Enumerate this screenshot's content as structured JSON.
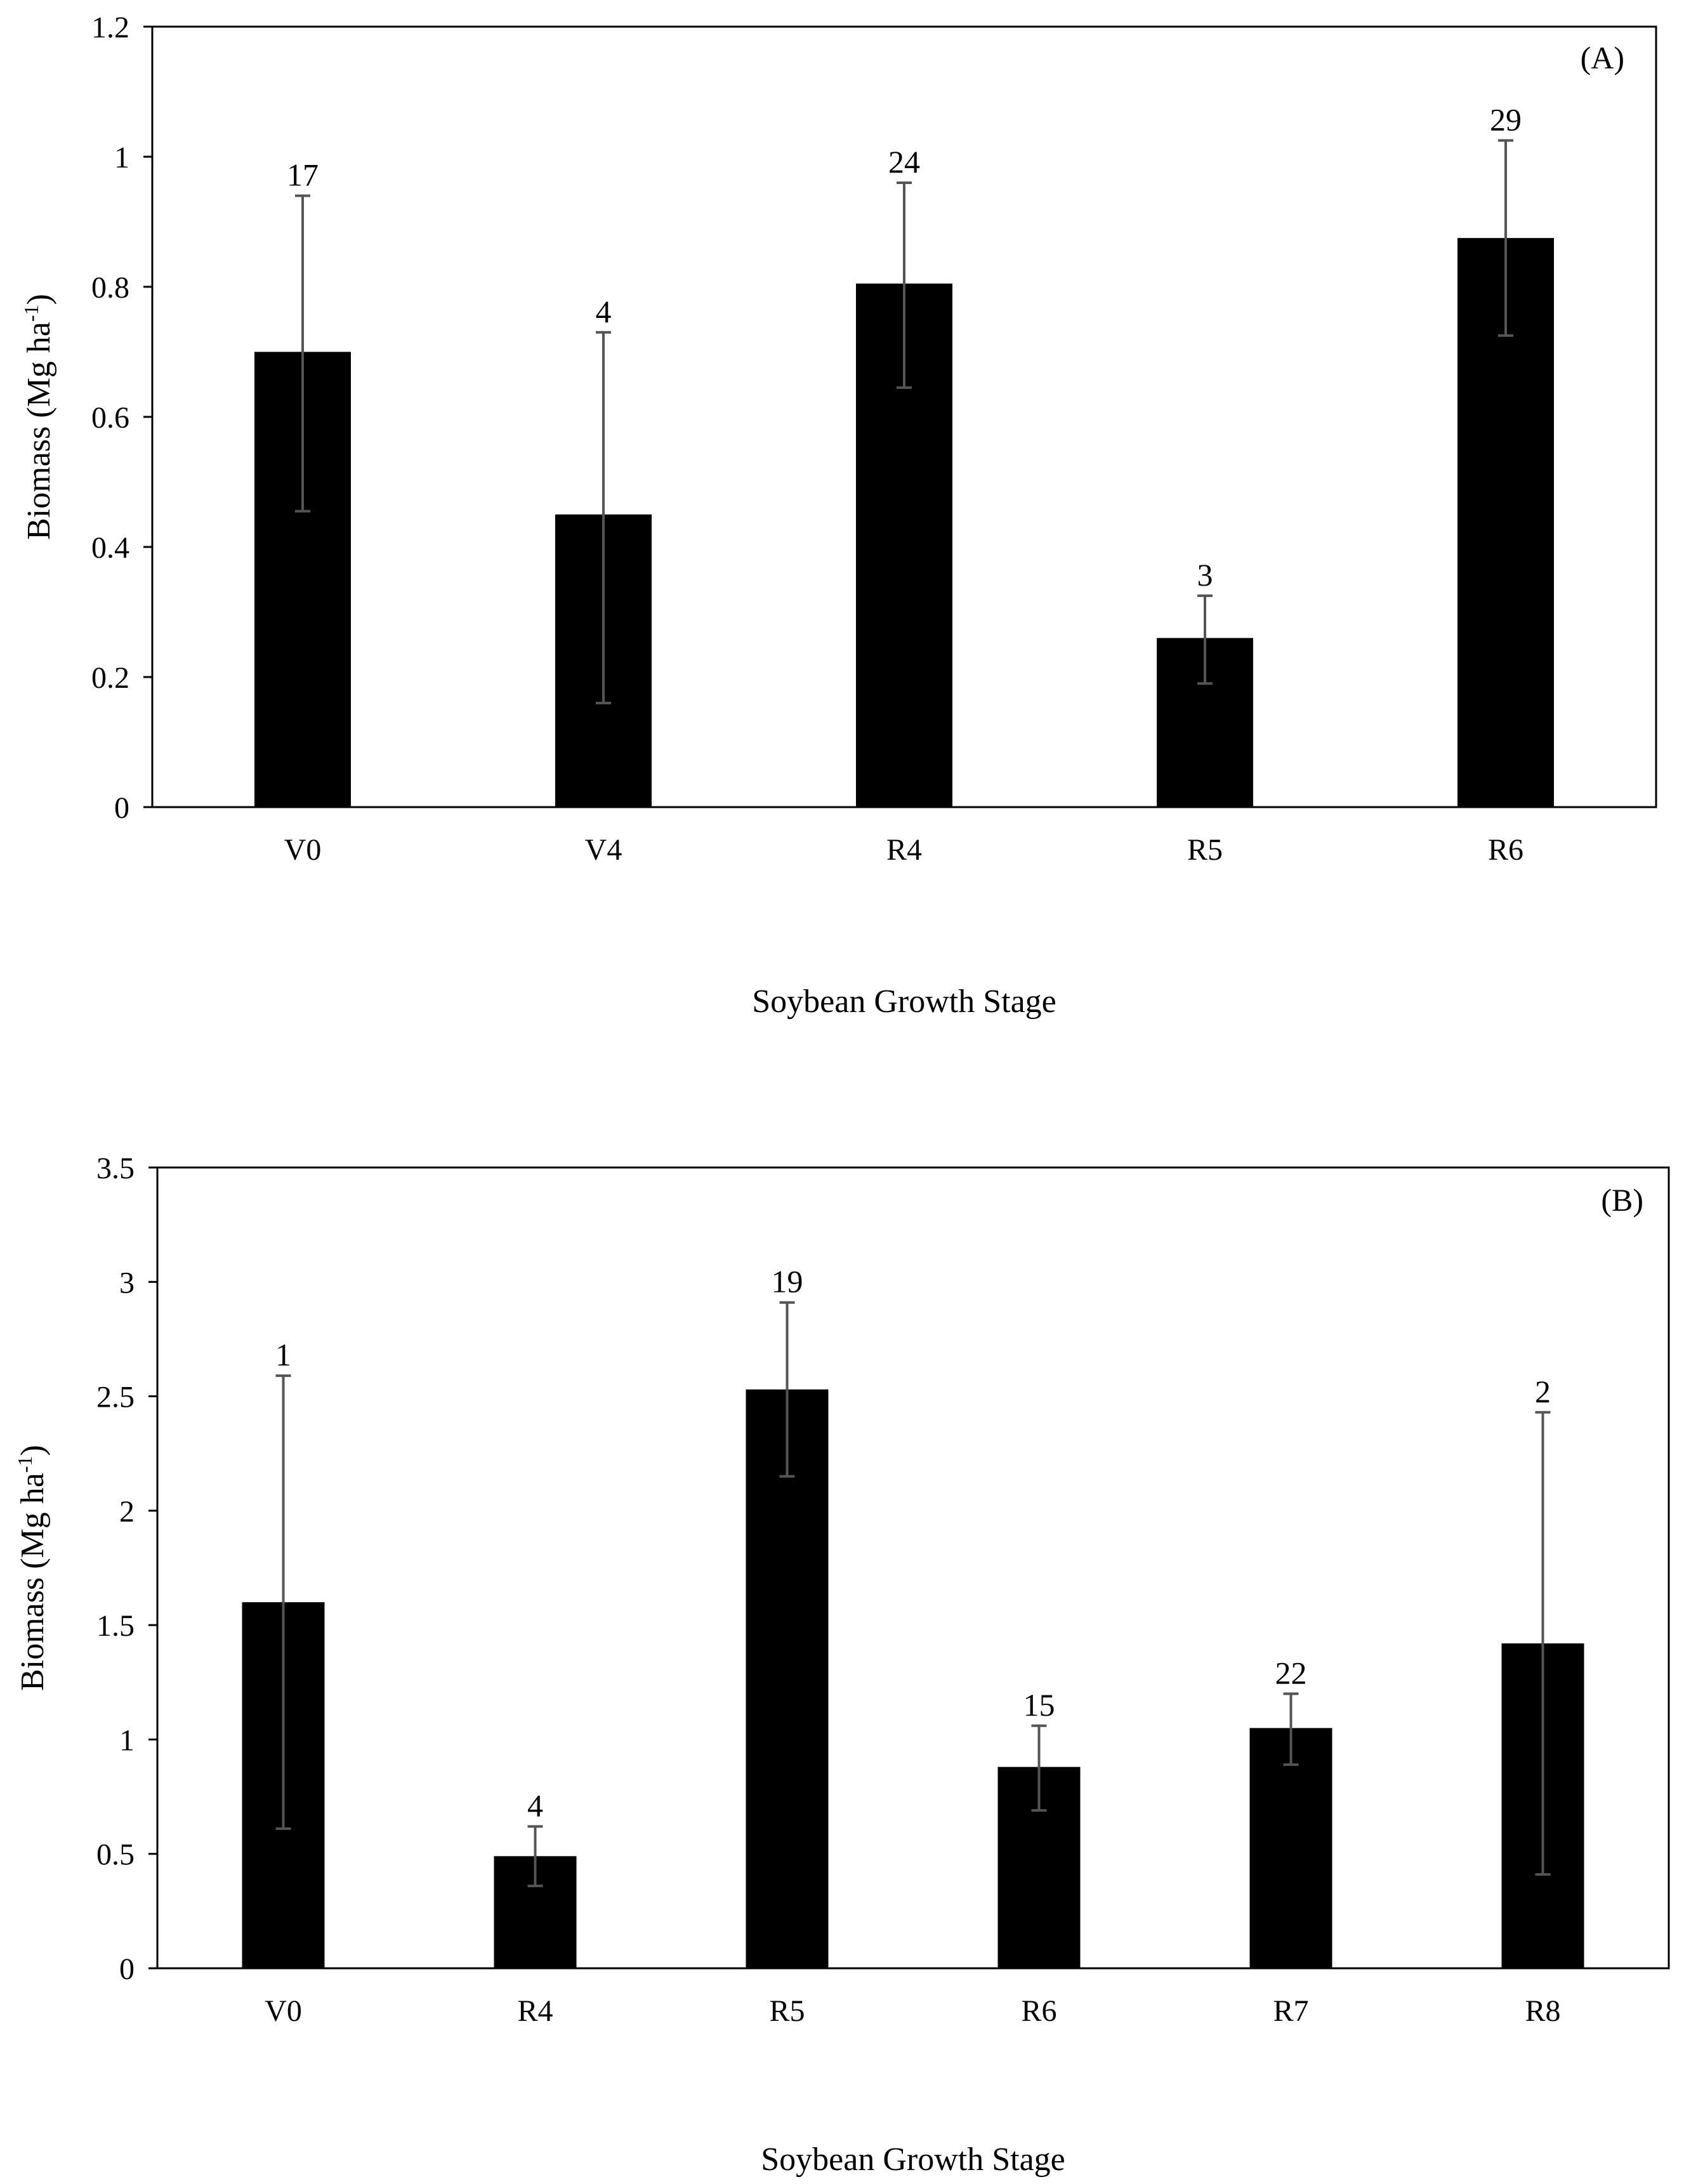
{
  "chart_data": [
    {
      "type": "bar",
      "panel_label": "(A)",
      "xlabel": "Soybean Growth Stage",
      "ylabel_main": "Biomass (Mg ha",
      "ylabel_sup": "-1",
      "ylabel_close": ")",
      "ylim": [
        0,
        1.2
      ],
      "yticks": [
        0,
        0.2,
        0.4,
        0.6,
        0.8,
        1,
        1.2
      ],
      "ytick_labels": [
        "0",
        "0.2",
        "0.4",
        "0.6",
        "0.8",
        "1",
        "1.2"
      ],
      "categories": [
        "V0",
        "V4",
        "R4",
        "R5",
        "R6"
      ],
      "values": [
        0.7,
        0.45,
        0.805,
        0.26,
        0.875
      ],
      "error_low": [
        0.455,
        0.16,
        0.645,
        0.19,
        0.725
      ],
      "error_high": [
        0.94,
        0.73,
        0.96,
        0.325,
        1.025
      ],
      "n_labels": [
        "17",
        "4",
        "24",
        "3",
        "29"
      ],
      "grid": false
    },
    {
      "type": "bar",
      "panel_label": "(B)",
      "xlabel": "Soybean Growth Stage",
      "ylabel_main": "Biomass (Mg ha",
      "ylabel_sup": "-1",
      "ylabel_close": ")",
      "ylim": [
        0,
        3.5
      ],
      "yticks": [
        0,
        0.5,
        1,
        1.5,
        2,
        2.5,
        3,
        3.5
      ],
      "ytick_labels": [
        "0",
        "0.5",
        "1",
        "1.5",
        "2",
        "2.5",
        "3",
        "3.5"
      ],
      "categories": [
        "V0",
        "R4",
        "R5",
        "R6",
        "R7",
        "R8"
      ],
      "values": [
        1.6,
        0.49,
        2.53,
        0.88,
        1.05,
        1.42
      ],
      "error_low": [
        0.61,
        0.36,
        2.15,
        0.69,
        0.89,
        0.41
      ],
      "error_high": [
        2.59,
        0.62,
        2.91,
        1.06,
        1.2,
        2.43
      ],
      "n_labels": [
        "1",
        "4",
        "19",
        "15",
        "22",
        "2"
      ],
      "grid": false
    }
  ]
}
